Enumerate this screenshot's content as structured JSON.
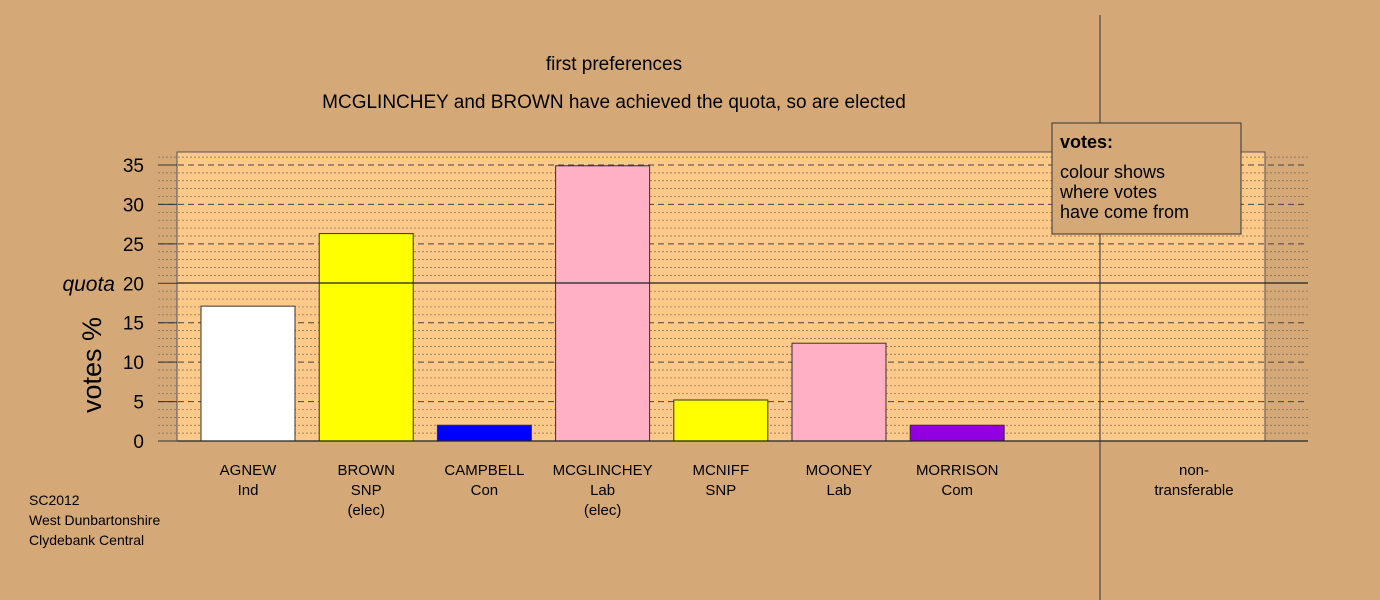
{
  "chart_data": {
    "type": "bar",
    "title": "first preferences",
    "subtitle": "MCGLINCHEY and BROWN have achieved the quota, so are elected",
    "ylabel": "votes %",
    "ylim": [
      0,
      35
    ],
    "yticks": [
      0,
      5,
      10,
      15,
      20,
      25,
      30,
      35
    ],
    "quota": 20,
    "quota_label": "quota",
    "candidates": [
      {
        "name": "AGNEW",
        "party": "Ind",
        "status": "",
        "value": 17.1,
        "color": "#ffffff"
      },
      {
        "name": "BROWN",
        "party": "SNP",
        "status": "(elec)",
        "value": 26.3,
        "color": "#ffff00"
      },
      {
        "name": "CAMPBELL",
        "party": "Con",
        "status": "",
        "value": 2.0,
        "color": "#0000ff"
      },
      {
        "name": "MCGLINCHEY",
        "party": "Lab",
        "status": "(elec)",
        "value": 34.9,
        "color": "#ffb0c4"
      },
      {
        "name": "MCNIFF",
        "party": "SNP",
        "status": "",
        "value": 5.2,
        "color": "#ffff00"
      },
      {
        "name": "MOONEY",
        "party": "Lab",
        "status": "",
        "value": 12.4,
        "color": "#ffb0c4"
      },
      {
        "name": "MORRISON",
        "party": "Com",
        "status": "",
        "value": 2.0,
        "color": "#9000e0"
      }
    ],
    "nontransferable": {
      "label_line1": "non-",
      "label_line2": "transferable",
      "value": 0
    },
    "legend": {
      "title": "votes:",
      "lines": [
        "colour shows",
        "where votes",
        "have come from"
      ],
      "placement": "top-right"
    },
    "grid": true,
    "colors": {
      "background": "#d4a977",
      "plot_area": "#ffc98a"
    }
  },
  "footer": {
    "line1": "SC2012",
    "line2": "West Dunbartonshire",
    "line3": "Clydebank Central"
  }
}
